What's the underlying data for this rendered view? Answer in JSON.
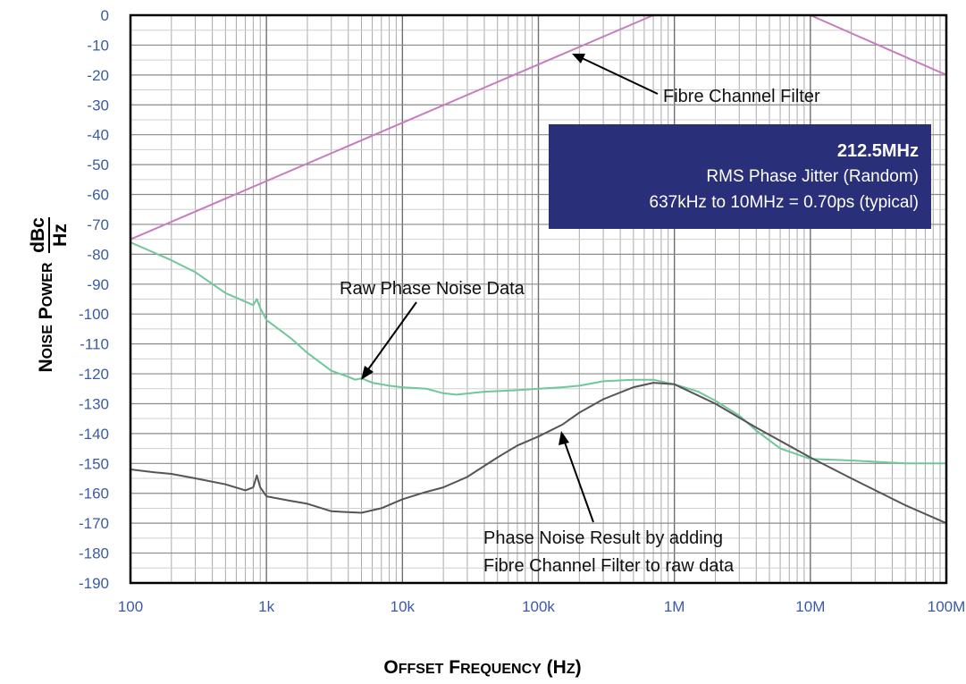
{
  "chart_data": {
    "type": "line",
    "xscale": "log",
    "xlim": [
      100,
      100000000
    ],
    "ylim": [
      -190,
      0
    ],
    "grid": true,
    "xticks": [
      {
        "value": 100,
        "label": "100"
      },
      {
        "value": 1000,
        "label": "1k"
      },
      {
        "value": 10000,
        "label": "10k"
      },
      {
        "value": 100000,
        "label": "100k"
      },
      {
        "value": 1000000,
        "label": "1M"
      },
      {
        "value": 10000000,
        "label": "10M"
      },
      {
        "value": 100000000,
        "label": "100M"
      }
    ],
    "yticks": [
      0,
      -10,
      -20,
      -30,
      -40,
      -50,
      -60,
      -70,
      -80,
      -90,
      -100,
      -110,
      -120,
      -130,
      -140,
      -150,
      -160,
      -170,
      -180,
      -190
    ],
    "xlabel": "Offset Frequency (Hz)",
    "ylabel": "Noise Power",
    "ylabel_unit_num": "dBc",
    "ylabel_unit_den": "Hz",
    "series": [
      {
        "key": "filter",
        "color": "#c77dbf",
        "x": [
          100,
          700000,
          10000000,
          100000000
        ],
        "y": [
          -75,
          0,
          0,
          -20
        ]
      },
      {
        "key": "raw",
        "color": "#6fc79a",
        "x": [
          100,
          200,
          300,
          500,
          800,
          850,
          900,
          1000,
          1500,
          2000,
          3000,
          4000,
          4500,
          5000,
          6000,
          8000,
          10000,
          15000,
          20000,
          25000,
          40000,
          70000,
          100000,
          150000,
          200000,
          300000,
          500000,
          700000,
          1000000,
          1500000,
          2000000,
          3000000,
          4000000,
          6000000,
          10000000,
          20000000,
          50000000,
          100000000
        ],
        "y": [
          -76,
          -82,
          -86,
          -93,
          -97,
          -95,
          -98,
          -102,
          -108,
          -113,
          -119,
          -121,
          -122,
          -121.5,
          -123,
          -124,
          -124.5,
          -125,
          -126.5,
          -127,
          -126,
          -125.5,
          -125,
          -124.5,
          -124,
          -122.5,
          -122,
          -122,
          -123.5,
          -126,
          -129,
          -134,
          -139,
          -145,
          -148.5,
          -149,
          -150,
          -150
        ]
      },
      {
        "key": "result",
        "color": "#555555",
        "x": [
          100,
          150,
          200,
          300,
          500,
          700,
          800,
          850,
          900,
          1000,
          1500,
          2000,
          3000,
          5000,
          7000,
          10000,
          15000,
          20000,
          30000,
          50000,
          70000,
          100000,
          150000,
          200000,
          300000,
          500000,
          700000,
          1000000,
          2000000,
          4000000,
          10000000,
          20000000,
          50000000,
          100000000
        ],
        "y": [
          -152,
          -153,
          -153.5,
          -155,
          -157,
          -159,
          -158,
          -154,
          -158,
          -161,
          -162.5,
          -163.5,
          -166,
          -166.5,
          -165,
          -162,
          -159.5,
          -158,
          -154.5,
          -148,
          -144,
          -141,
          -137,
          -133,
          -128.5,
          -124.5,
          -123,
          -123.5,
          -130,
          -138,
          -148,
          -155,
          -164,
          -170
        ]
      }
    ],
    "annotations": {
      "filter_label": "Fibre Channel Filter",
      "raw_label": "Raw Phase Noise Data",
      "result_label_line1": "Phase Noise Result by adding",
      "result_label_line2": "Fibre Channel Filter to raw data"
    },
    "infobox": {
      "title": "212.5MHz",
      "line1": "RMS Phase Jitter (Random)",
      "line2": "637kHz to 10MHz = 0.70ps (typical)",
      "background": "#2a2f7a"
    }
  }
}
